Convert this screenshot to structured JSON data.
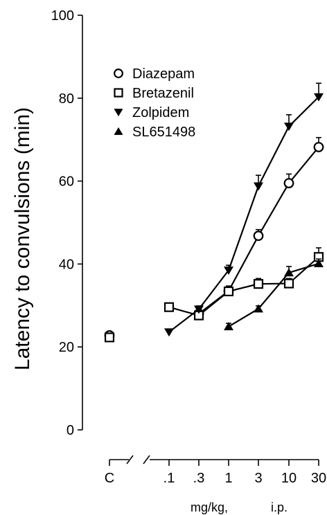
{
  "chart_data": {
    "type": "line",
    "title": "",
    "ylabel": "Latency to convulsions (min)",
    "xlabel_parts": [
      "mg/kg,",
      "i.p."
    ],
    "ylim": [
      0,
      100
    ],
    "y_ticks": [
      0,
      20,
      40,
      60,
      80,
      100
    ],
    "x_categories": [
      "C",
      ".1",
      ".3",
      "1",
      "3",
      "10",
      "30"
    ],
    "x_axis_break": true,
    "legend_placement": "top-left",
    "colors": {
      "ink": "#000000",
      "paper": "#ffffff"
    },
    "series": [
      {
        "name": "Diazepam",
        "marker": "circle-open",
        "x": [
          "C",
          ".3",
          "1",
          "3",
          "10",
          "30"
        ],
        "values": [
          22.8,
          28.0,
          33.5,
          46.8,
          59.5,
          68.2
        ],
        "errors": [
          0.8,
          1.0,
          1.2,
          1.5,
          2.2,
          2.3
        ]
      },
      {
        "name": "Bretazenil",
        "marker": "square-open",
        "x": [
          "C",
          ".1",
          ".3",
          "1",
          "3",
          "10",
          "30"
        ],
        "values": [
          22.3,
          29.6,
          27.6,
          33.4,
          35.2,
          35.3,
          41.7
        ],
        "errors": [
          0.8,
          1.0,
          1.0,
          1.2,
          1.3,
          1.2,
          2.2
        ]
      },
      {
        "name": "Zolpidem",
        "marker": "triangle-down-filled",
        "x": [
          ".1",
          ".3",
          "1",
          "3",
          "10",
          "30"
        ],
        "values": [
          23.6,
          29.1,
          38.5,
          58.8,
          73.2,
          80.3
        ],
        "errors": [
          0.0,
          0.8,
          1.2,
          2.6,
          2.8,
          3.3
        ]
      },
      {
        "name": "SL651498",
        "marker": "triangle-up-filled",
        "x": [
          "1",
          "3",
          "10",
          "30"
        ],
        "values": [
          24.9,
          29.2,
          37.9,
          40.1
        ],
        "errors": [
          0.8,
          0.7,
          1.5,
          1.1
        ]
      }
    ]
  }
}
